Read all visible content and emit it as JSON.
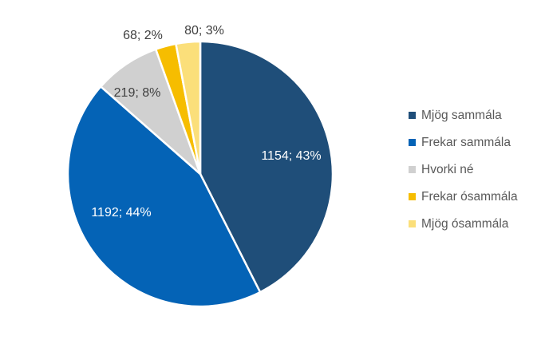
{
  "chart_data": {
    "type": "pie",
    "title": "",
    "legend_position": "right",
    "start_angle_deg": 0,
    "direction": "clockwise",
    "slices": [
      {
        "name": "Mjög sammála",
        "value": 1154,
        "percent": "43%",
        "label": "1154; 43%",
        "color": "#1f4e79",
        "label_color": "#ffffff"
      },
      {
        "name": "Frekar sammála",
        "value": 1192,
        "percent": "44%",
        "label": "1192; 44%",
        "color": "#0463b6",
        "label_color": "#ffffff"
      },
      {
        "name": "Hvorki né",
        "value": 219,
        "percent": "8%",
        "label": "219; 8%",
        "color": "#d0d0d0",
        "label_color": "#404040"
      },
      {
        "name": "Frekar ósammála",
        "value": 68,
        "percent": "2%",
        "label": "68; 2%",
        "color": "#f6bd00",
        "label_color": "#404040"
      },
      {
        "name": "Mjög ósammála",
        "value": 80,
        "percent": "3%",
        "label": "80; 3%",
        "color": "#fbdf7a",
        "label_color": "#404040"
      }
    ]
  }
}
